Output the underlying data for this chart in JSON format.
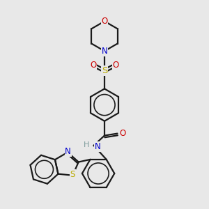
{
  "bg_color": "#e8e8e8",
  "bond_color": "#1a1a1a",
  "bond_width": 1.6,
  "colors": {
    "N": "#0000cc",
    "O": "#cc0000",
    "S": "#bbaa00",
    "H": "#7a9a9a",
    "C": "#1a1a1a"
  },
  "figsize": [
    3.0,
    3.0
  ],
  "dpi": 100
}
